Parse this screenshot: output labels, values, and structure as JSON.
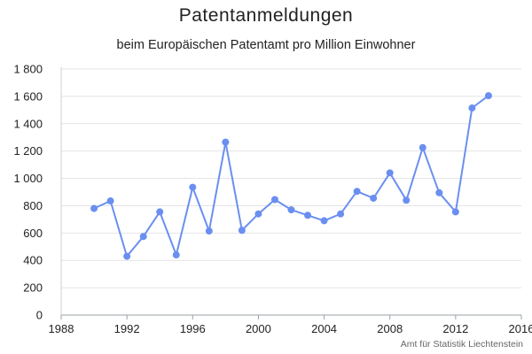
{
  "chart_data": {
    "type": "line",
    "title": "Patentanmeldungen",
    "subtitle": "beim Europäischen Patentamt pro Million Einwohner",
    "source": "Amt für Statistik Liechtenstein",
    "xlabel": "",
    "ylabel": "",
    "xlim": [
      1988,
      2016
    ],
    "ylim": [
      0,
      1800
    ],
    "x_ticks": [
      1988,
      1992,
      1996,
      2000,
      2004,
      2008,
      2012,
      2016
    ],
    "y_ticks": [
      0,
      200,
      400,
      600,
      800,
      1000,
      1200,
      1400,
      1600,
      1800
    ],
    "x_tick_labels": [
      "1988",
      "1992",
      "1996",
      "2000",
      "2004",
      "2008",
      "2012",
      "2016"
    ],
    "y_tick_labels": [
      "0",
      "200",
      "400",
      "600",
      "800",
      "1 000",
      "1 200",
      "1 400",
      "1 600",
      "1 800"
    ],
    "grid": "horizontal",
    "legend": "none",
    "series_color": "#6a8ff0",
    "x": [
      1990,
      1991,
      1992,
      1993,
      1994,
      1995,
      1996,
      1997,
      1998,
      1999,
      2000,
      2001,
      2002,
      2003,
      2004,
      2005,
      2006,
      2007,
      2008,
      2009,
      2010,
      2011,
      2012,
      2013,
      2014
    ],
    "y": [
      780,
      835,
      430,
      575,
      755,
      440,
      935,
      615,
      1265,
      620,
      740,
      845,
      770,
      730,
      690,
      740,
      905,
      855,
      1040,
      840,
      1225,
      895,
      755,
      1515,
      1605
    ]
  }
}
